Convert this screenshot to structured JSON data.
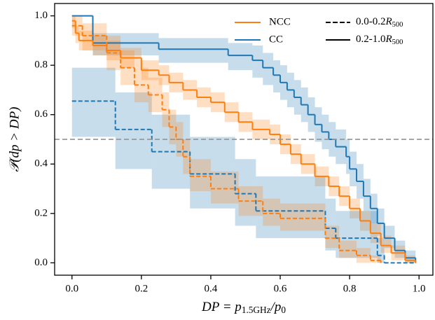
{
  "chart_data": {
    "type": "step",
    "xlim": [
      -0.05,
      1.04
    ],
    "ylim": [
      -0.05,
      1.05
    ],
    "xticks": [
      {
        "value": 0,
        "label": "0.0"
      },
      {
        "value": 0.2,
        "label": "0.2"
      },
      {
        "value": 0.4,
        "label": "0.4"
      },
      {
        "value": 0.6,
        "label": "0.6"
      },
      {
        "value": 0.8,
        "label": "0.8"
      },
      {
        "value": 1,
        "label": "1.0"
      }
    ],
    "yticks": [
      {
        "value": 0,
        "label": "0.0"
      },
      {
        "value": 0.2,
        "label": "0.2"
      },
      {
        "value": 0.4,
        "label": "0.4"
      },
      {
        "value": 0.6,
        "label": "0.6"
      },
      {
        "value": 0.8,
        "label": "0.8"
      },
      {
        "value": 1,
        "label": "1.0"
      }
    ],
    "ylabel": "𝒫(dp > DP)",
    "xlabel_parts": [
      {
        "text": "DP = p",
        "sub": false
      },
      {
        "text": "1.5GHz",
        "sub": true
      },
      {
        "text": "/p",
        "sub": false
      },
      {
        "text": "0",
        "sub": true
      }
    ],
    "hline": {
      "value": 0.5,
      "color": "#999999"
    },
    "legend_colors": [
      {
        "name": "NCC",
        "color": "#ff7f0e"
      },
      {
        "name": "CC",
        "color": "#1f77b4"
      }
    ],
    "legend_styles": [
      {
        "dashed": true,
        "parts": [
          {
            "text": "0.0-0.2",
            "sub": false
          },
          {
            "text": "R",
            "sub": false
          },
          {
            "text": "500",
            "sub": true
          }
        ]
      },
      {
        "dashed": false,
        "parts": [
          {
            "text": "0.2-1.0",
            "sub": false
          },
          {
            "text": "R",
            "sub": false
          },
          {
            "text": "500",
            "sub": true
          }
        ]
      }
    ],
    "series": [
      {
        "color": "#1f77b4",
        "dashed": false,
        "x": [
          0,
          0.06,
          0.25,
          0.45,
          0.52,
          0.55,
          0.58,
          0.6,
          0.62,
          0.64,
          0.66,
          0.68,
          0.7,
          0.72,
          0.74,
          0.76,
          0.79,
          0.8,
          0.82,
          0.84,
          0.86,
          0.88,
          0.9,
          0.93,
          0.96,
          0.99
        ],
        "values": [
          1.0,
          0.89,
          0.865,
          0.84,
          0.82,
          0.79,
          0.76,
          0.73,
          0.7,
          0.67,
          0.64,
          0.6,
          0.56,
          0.53,
          0.5,
          0.47,
          0.43,
          0.38,
          0.33,
          0.27,
          0.22,
          0.16,
          0.1,
          0.05,
          0.02,
          0.0
        ],
        "lower": [
          1.0,
          0.84,
          0.81,
          0.78,
          0.75,
          0.72,
          0.69,
          0.66,
          0.63,
          0.6,
          0.57,
          0.53,
          0.49,
          0.46,
          0.43,
          0.4,
          0.36,
          0.31,
          0.26,
          0.21,
          0.16,
          0.11,
          0.06,
          0.02,
          0.0,
          0.0
        ],
        "upper": [
          1.0,
          0.93,
          0.91,
          0.89,
          0.88,
          0.85,
          0.82,
          0.8,
          0.77,
          0.74,
          0.71,
          0.67,
          0.63,
          0.6,
          0.57,
          0.54,
          0.5,
          0.45,
          0.4,
          0.34,
          0.28,
          0.22,
          0.15,
          0.09,
          0.05,
          0.0
        ]
      },
      {
        "color": "#ff7f0e",
        "dashed": false,
        "x": [
          0,
          0.01,
          0.02,
          0.06,
          0.1,
          0.14,
          0.2,
          0.25,
          0.28,
          0.32,
          0.36,
          0.4,
          0.44,
          0.48,
          0.52,
          0.57,
          0.6,
          0.63,
          0.66,
          0.7,
          0.74,
          0.77,
          0.8,
          0.83,
          0.86,
          0.89,
          0.92,
          0.96,
          0.99
        ],
        "values": [
          0.98,
          0.93,
          0.9,
          0.88,
          0.86,
          0.83,
          0.78,
          0.76,
          0.73,
          0.7,
          0.67,
          0.65,
          0.61,
          0.57,
          0.54,
          0.52,
          0.48,
          0.44,
          0.4,
          0.35,
          0.31,
          0.27,
          0.22,
          0.17,
          0.12,
          0.07,
          0.04,
          0.01,
          0.0
        ],
        "lower": [
          0.95,
          0.89,
          0.86,
          0.84,
          0.82,
          0.79,
          0.74,
          0.72,
          0.69,
          0.66,
          0.63,
          0.61,
          0.57,
          0.53,
          0.5,
          0.48,
          0.44,
          0.4,
          0.36,
          0.31,
          0.27,
          0.23,
          0.18,
          0.13,
          0.08,
          0.04,
          0.01,
          0.0,
          0.0
        ],
        "upper": [
          1.0,
          0.96,
          0.94,
          0.92,
          0.9,
          0.87,
          0.82,
          0.8,
          0.77,
          0.74,
          0.71,
          0.69,
          0.65,
          0.61,
          0.58,
          0.56,
          0.52,
          0.48,
          0.44,
          0.39,
          0.35,
          0.31,
          0.26,
          0.21,
          0.16,
          0.11,
          0.07,
          0.03,
          0.0
        ]
      },
      {
        "color": "#1f77b4",
        "dashed": true,
        "x": [
          0,
          0.125,
          0.23,
          0.34,
          0.47,
          0.53,
          0.73,
          0.76,
          0.88,
          0.9,
          0.99
        ],
        "values": [
          0.655,
          0.54,
          0.45,
          0.36,
          0.28,
          0.21,
          0.14,
          0.1,
          0.03,
          0.0,
          0.0
        ],
        "lower": [
          0.51,
          0.38,
          0.3,
          0.22,
          0.15,
          0.1,
          0.05,
          0.02,
          0.0,
          0.0,
          0.0
        ],
        "upper": [
          0.79,
          0.69,
          0.6,
          0.51,
          0.42,
          0.35,
          0.26,
          0.21,
          0.1,
          0.0,
          0.0
        ]
      },
      {
        "color": "#ff7f0e",
        "dashed": true,
        "x": [
          0,
          0.03,
          0.1,
          0.14,
          0.18,
          0.22,
          0.26,
          0.28,
          0.3,
          0.32,
          0.34,
          0.4,
          0.48,
          0.55,
          0.6,
          0.73,
          0.77,
          0.82,
          0.86,
          0.89
        ],
        "values": [
          0.96,
          0.92,
          0.85,
          0.79,
          0.72,
          0.68,
          0.62,
          0.55,
          0.5,
          0.43,
          0.35,
          0.3,
          0.25,
          0.2,
          0.18,
          0.1,
          0.05,
          0.03,
          0.01,
          0.0
        ],
        "lower": [
          0.92,
          0.86,
          0.78,
          0.72,
          0.65,
          0.61,
          0.55,
          0.48,
          0.43,
          0.36,
          0.29,
          0.24,
          0.19,
          0.15,
          0.13,
          0.06,
          0.02,
          0.0,
          0.0,
          0.0
        ],
        "upper": [
          1.0,
          0.97,
          0.92,
          0.86,
          0.79,
          0.75,
          0.69,
          0.62,
          0.57,
          0.5,
          0.42,
          0.37,
          0.31,
          0.26,
          0.24,
          0.15,
          0.09,
          0.06,
          0.03,
          0.0
        ]
      }
    ]
  }
}
